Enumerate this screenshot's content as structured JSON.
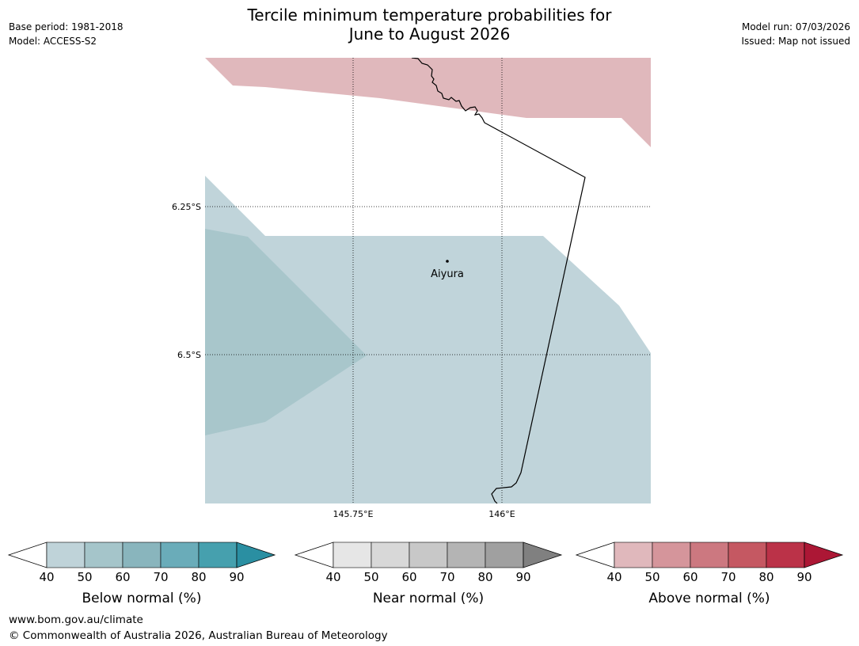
{
  "title": {
    "line1": "Tercile minimum temperature probabilities for",
    "line2": "June to August 2026"
  },
  "meta_left": {
    "base_period": "Base period: 1981-2018",
    "model": "Model: ACCESS-S2"
  },
  "meta_right": {
    "model_run": "Model run: 07/03/2026",
    "issued": "Issued: Map not issued"
  },
  "map": {
    "lat_labels": [
      "6.25°S",
      "6.5°S"
    ],
    "lon_labels": [
      "145.75°E",
      "146°E"
    ],
    "place": "Aiyura",
    "colors": {
      "above_40_50": "#e0b8bc",
      "below_40_50": "#c0d4da",
      "below_50_60": "#a8c6cb"
    }
  },
  "legends": [
    {
      "title": "Below normal (%)",
      "ticks": [
        "40",
        "50",
        "60",
        "70",
        "80",
        "90"
      ],
      "colors": [
        "#bfd3d9",
        "#a5c5ca",
        "#89b5bd",
        "#6aacb9",
        "#46a0ae",
        "#2a8fa2"
      ]
    },
    {
      "title": "Near normal (%)",
      "ticks": [
        "40",
        "50",
        "60",
        "70",
        "80",
        "90"
      ],
      "colors": [
        "#e6e6e6",
        "#d8d8d8",
        "#c8c8c8",
        "#b4b4b4",
        "#a0a0a0",
        "#808080"
      ]
    },
    {
      "title": "Above normal (%)",
      "ticks": [
        "40",
        "50",
        "60",
        "70",
        "80",
        "90"
      ],
      "colors": [
        "#e0b8bc",
        "#d5959b",
        "#cc7880",
        "#c55862",
        "#bb3248",
        "#ac1735"
      ]
    }
  ],
  "footer": {
    "url": "www.bom.gov.au/climate",
    "copyright": "© Commonwealth of Australia 2026, Australian Bureau of Meteorology"
  }
}
